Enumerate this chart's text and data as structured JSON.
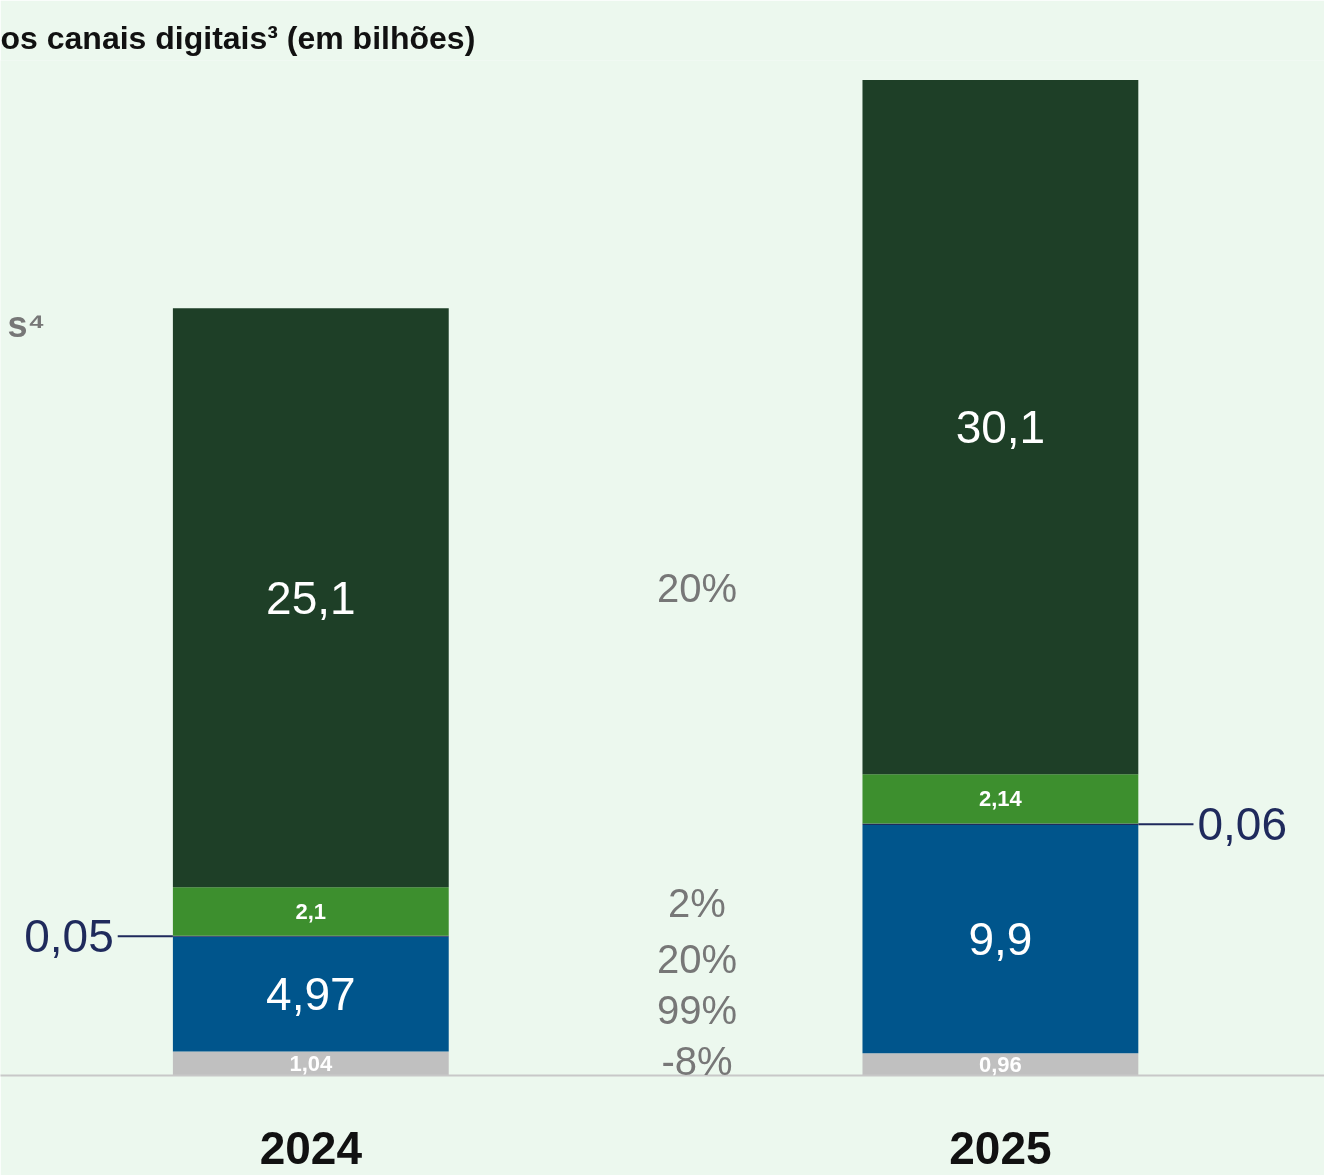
{
  "chart_data": {
    "type": "bar",
    "title": "os canais digitais³ (em bilhões)",
    "categories": [
      "2024",
      "2025"
    ],
    "stacked": true,
    "ylim": [
      0,
      44
    ],
    "data_labels": true,
    "grid": false,
    "series": [
      {
        "color": "#c0c0c0",
        "values": [
          1.04,
          0.96
        ],
        "value_labels": [
          "1,04",
          "0,96"
        ]
      },
      {
        "color": "#00558c",
        "values": [
          4.97,
          9.9
        ],
        "value_labels": [
          "4,97",
          "9,9"
        ]
      },
      {
        "color": "#1f2a5c",
        "values": [
          0.05,
          0.06
        ],
        "value_labels": [
          "0,05",
          "0,06"
        ]
      },
      {
        "color": "#3d8f2e",
        "values": [
          2.1,
          2.14
        ],
        "value_labels": [
          "2,1",
          "2,14"
        ]
      },
      {
        "color": "#1e3f27",
        "values": [
          25.1,
          30.1
        ],
        "value_labels": [
          "25,1",
          "30,1"
        ]
      }
    ],
    "annotations": [
      "s⁴",
      "20%",
      "2%",
      "20%",
      "99%",
      "-8%"
    ]
  }
}
